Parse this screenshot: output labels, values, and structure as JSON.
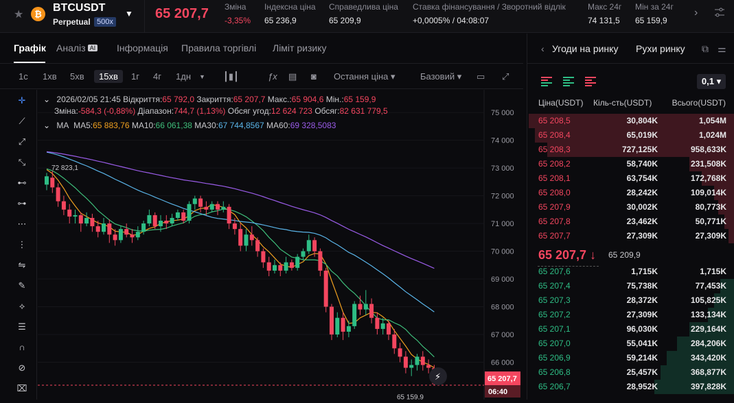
{
  "header": {
    "symbol": "BTCUSDT",
    "contract": "Perpetual",
    "leverage": "500x",
    "coin_glyph": "₿",
    "last_price": "65 207,7",
    "stats": [
      {
        "label": "Зміна",
        "value": "-3,35%",
        "color": "#f4465f"
      },
      {
        "label": "Індексна ціна",
        "value": "65 236,9"
      },
      {
        "label": "Справедлива ціна",
        "value": "65 209,9"
      },
      {
        "label": "Ставка фінансування / Зворотний відлік",
        "value": "+0,0005% / 04:08:07"
      },
      {
        "label": "Макс 24г",
        "value": "74 131,5"
      },
      {
        "label": "Мін за 24г",
        "value": "65 159,9"
      }
    ]
  },
  "tabs": [
    "Графік",
    "Аналіз",
    "Інформація",
    "Правила торгівлі",
    "Ліміт ризику"
  ],
  "ai_badge": "AI",
  "toolbar": {
    "intervals": [
      "1с",
      "1хв",
      "5хв",
      "15хв",
      "1г",
      "4г",
      "1дн"
    ],
    "active": "15хв",
    "price_type": "Остання ціна",
    "view": "Базовий"
  },
  "left_tools": [
    "crosshair-icon",
    "trend-line-icon",
    "ray-icon",
    "extended-line-icon",
    "horizontal-line-icon",
    "horizontal-ray-icon",
    "parallel-channel-icon",
    "vertical-line-icon",
    "price-range-icon",
    "brush-icon",
    "pattern-icon",
    "fib-icon",
    "magnet-icon",
    "eye-off-icon",
    "trash-icon"
  ],
  "ohlc": {
    "date": "2026/02/05 21:45",
    "open_label": "Відкриття:",
    "open": "65 792,0",
    "close_label": "Закриття:",
    "close": "65 207,7",
    "high_label": "Макс.:",
    "high": "65 904,6",
    "low_label": "Мін.:",
    "low": "65 159,9",
    "change_label": "Зміна:",
    "change": "-584,3 (-0,88%)",
    "range_label": "Діапазон:",
    "range": "744,7 (1,13%)",
    "vol_label": "Обсяг угод:",
    "vol": "12 624 723",
    "turn_label": "Обсяг:",
    "turn": "82 631 779,5"
  },
  "ma": {
    "label": "MA",
    "ma5_label": "MA5:",
    "ma5": "65 883,76",
    "ma10_label": "MA10:",
    "ma10": "66 061,38",
    "ma30_label": "MA30:",
    "ma30": "67 744,8567",
    "ma60_label": "MA60:",
    "ma60": "69 328,5083"
  },
  "chart_data": {
    "type": "candlestick",
    "y_ticks": [
      75000,
      74000,
      73000,
      72000,
      71000,
      70000,
      69000,
      68000,
      67000,
      66000
    ],
    "y_tick_labels": [
      "75 000",
      "74 000",
      "73 000",
      "72 000",
      "71 000",
      "70 000",
      "69 000",
      "68 000",
      "67 000",
      "66 000"
    ],
    "ylim": [
      65000,
      75200
    ],
    "candles": [
      [
        72400,
        72700,
        72823,
        72200
      ],
      [
        72650,
        72300,
        72900,
        72100
      ],
      [
        72300,
        71800,
        72450,
        71600
      ],
      [
        71800,
        71500,
        72000,
        71300
      ],
      [
        71500,
        71250,
        71700,
        71000
      ],
      [
        71250,
        71300,
        71500,
        71000
      ],
      [
        71300,
        71000,
        71400,
        70700
      ],
      [
        71000,
        71200,
        71400,
        70900
      ],
      [
        71200,
        70900,
        71350,
        70700
      ],
      [
        70900,
        70700,
        71100,
        70500
      ],
      [
        70700,
        71000,
        71200,
        70600
      ],
      [
        71000,
        70600,
        71150,
        70300
      ],
      [
        70600,
        70400,
        70800,
        70200
      ],
      [
        70400,
        70800,
        70900,
        70300
      ],
      [
        70800,
        70600,
        71000,
        70500
      ],
      [
        70600,
        70500,
        70800,
        70300
      ],
      [
        70500,
        70700,
        70900,
        70400
      ],
      [
        70700,
        71000,
        71100,
        70600
      ],
      [
        71000,
        71300,
        71500,
        70900
      ],
      [
        71300,
        70900,
        71400,
        70800
      ],
      [
        70900,
        71100,
        71300,
        70700
      ],
      [
        71100,
        71000,
        71300,
        70800
      ],
      [
        71000,
        71200,
        71350,
        70900
      ],
      [
        71200,
        71400,
        71500,
        71100
      ],
      [
        71400,
        71100,
        71500,
        71000
      ],
      [
        71100,
        71700,
        71800,
        71000
      ],
      [
        71700,
        71900,
        72000,
        71500
      ],
      [
        71900,
        71600,
        72000,
        71400
      ],
      [
        71600,
        71500,
        71800,
        71300
      ],
      [
        71500,
        71700,
        71800,
        71400
      ],
      [
        71700,
        71500,
        71800,
        71300
      ],
      [
        71500,
        71600,
        71800,
        71400
      ],
      [
        71600,
        71000,
        71700,
        70800
      ],
      [
        71000,
        70800,
        71200,
        70600
      ],
      [
        70800,
        70200,
        71000,
        70000
      ],
      [
        70200,
        70600,
        70800,
        70000
      ],
      [
        70600,
        70400,
        70900,
        70200
      ],
      [
        70400,
        70000,
        70500,
        69800
      ],
      [
        70000,
        69600,
        70100,
        69400
      ],
      [
        69600,
        69300,
        69800,
        69100
      ],
      [
        69300,
        69500,
        69700,
        69200
      ],
      [
        69500,
        69300,
        69600,
        69100
      ],
      [
        69300,
        69600,
        69800,
        69200
      ],
      [
        69600,
        69400,
        69700,
        69300
      ],
      [
        69400,
        69800,
        69900,
        69300
      ],
      [
        69800,
        70000,
        70100,
        69700
      ],
      [
        70000,
        70400,
        70600,
        69900
      ],
      [
        70400,
        70000,
        70500,
        69800
      ],
      [
        70000,
        69300,
        70100,
        69100
      ],
      [
        69300,
        68000,
        69400,
        67800
      ],
      [
        68000,
        67000,
        68100,
        66800
      ],
      [
        67000,
        67600,
        67800,
        66900
      ],
      [
        67600,
        67100,
        67800,
        66800
      ],
      [
        67100,
        67300,
        67500,
        66900
      ],
      [
        67300,
        68100,
        68200,
        67200
      ],
      [
        68100,
        67900,
        68400,
        67700
      ],
      [
        67900,
        68100,
        68600,
        67700
      ],
      [
        68100,
        67600,
        68300,
        67400
      ],
      [
        67600,
        67200,
        67800,
        67000
      ],
      [
        67200,
        67400,
        67600,
        67000
      ],
      [
        67400,
        67000,
        67500,
        66800
      ],
      [
        67000,
        66500,
        67200,
        66300
      ],
      [
        66500,
        66200,
        66700,
        66000
      ],
      [
        66200,
        65800,
        66400,
        65600
      ],
      [
        65800,
        65900,
        66100,
        65500
      ],
      [
        65900,
        66200,
        66300,
        65700
      ],
      [
        66200,
        65900,
        66400,
        65700
      ],
      [
        65900,
        65800,
        66100,
        65600
      ],
      [
        65792,
        65207.7,
        65904.6,
        65159.9
      ]
    ],
    "ma_series": [
      {
        "name": "MA5",
        "color": "#f0a020"
      },
      {
        "name": "MA10",
        "color": "#3ebd7a"
      },
      {
        "name": "MA30",
        "color": "#5ab4e8"
      },
      {
        "name": "MA60",
        "color": "#9a5ce8"
      }
    ],
    "high_marker": "72 823,1",
    "low_marker": "65 159,9",
    "price_tag": "65 207,7",
    "countdown": "06:40"
  },
  "orderbook": {
    "tabs": [
      "Угоди на ринку",
      "Рухи ринку"
    ],
    "precision": "0,1",
    "headers": [
      "Ціна(USDT)",
      "Кіль-сть(USDT)",
      "Всього(USDT)"
    ],
    "asks": [
      [
        "65 208,5",
        "30,804K",
        "1,054M",
        1.0
      ],
      [
        "65 208,4",
        "65,019K",
        "1,024M",
        0.97
      ],
      [
        "65 208,3",
        "727,125K",
        "958,633K",
        0.91
      ],
      [
        "65 208,2",
        "58,740K",
        "231,508K",
        0.22
      ],
      [
        "65 208,1",
        "63,754K",
        "172,768K",
        0.16
      ],
      [
        "65 208,0",
        "28,242K",
        "109,014K",
        0.1
      ],
      [
        "65 207,9",
        "30,002K",
        "80,773K",
        0.08
      ],
      [
        "65 207,8",
        "23,462K",
        "50,771K",
        0.05
      ],
      [
        "65 207,7",
        "27,309K",
        "27,309K",
        0.03
      ]
    ],
    "mid": "65 207,7",
    "mid_arrow": "↓",
    "mark": "65 209,9",
    "bids": [
      [
        "65 207,6",
        "1,715K",
        "1,715K",
        0.0
      ],
      [
        "65 207,4",
        "75,738K",
        "77,453K",
        0.07
      ],
      [
        "65 207,3",
        "28,372K",
        "105,825K",
        0.1
      ],
      [
        "65 207,2",
        "27,309K",
        "133,134K",
        0.13
      ],
      [
        "65 207,1",
        "96,030K",
        "229,164K",
        0.22
      ],
      [
        "65 207,0",
        "55,041K",
        "284,206K",
        0.28
      ],
      [
        "65 206,9",
        "59,214K",
        "343,420K",
        0.33
      ],
      [
        "65 206,8",
        "25,457K",
        "368,877K",
        0.36
      ],
      [
        "65 206,7",
        "28,952K",
        "397,828K",
        0.39
      ]
    ]
  },
  "colors": {
    "up": "#2ebd85",
    "down": "#f4465f",
    "bg": "#0b0b0e"
  }
}
